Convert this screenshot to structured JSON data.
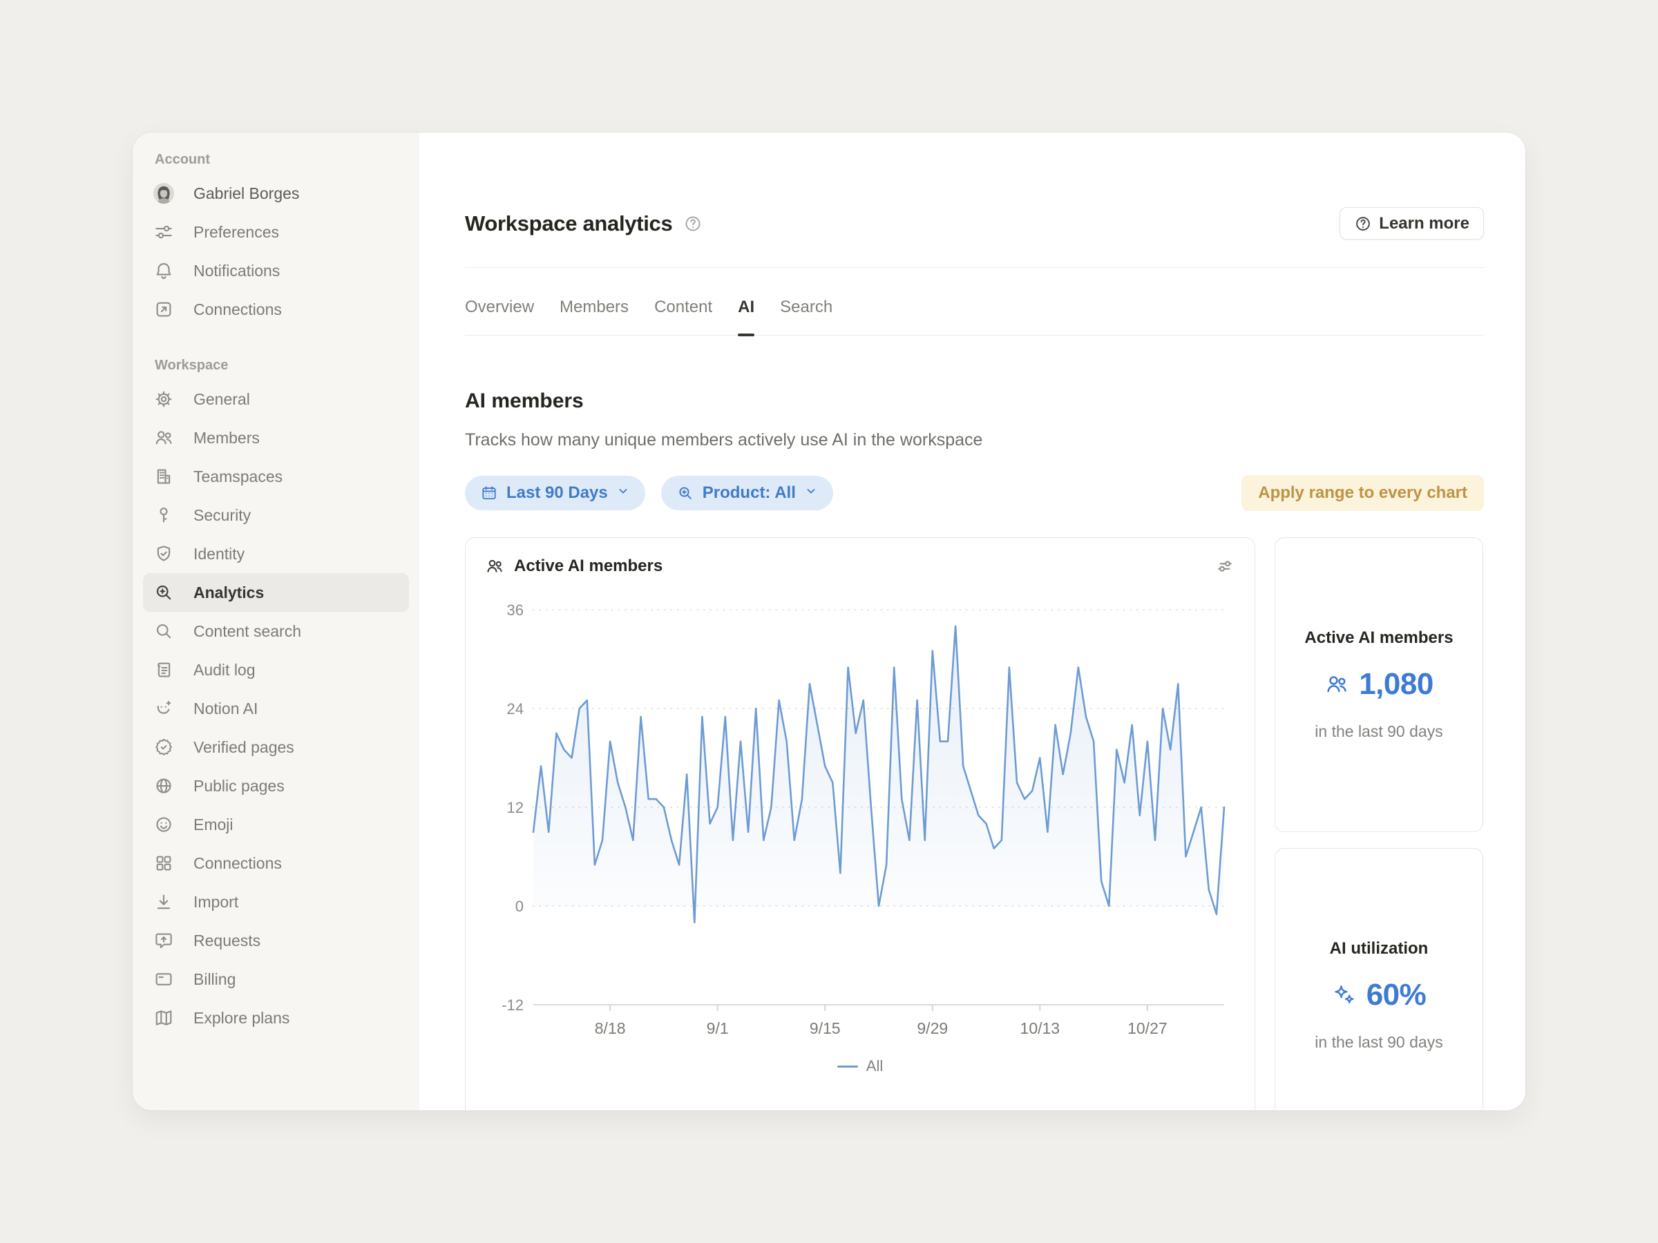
{
  "colors": {
    "accent_blue": "#3C7BD4",
    "chart_line": "#6D9BD3",
    "pill_bg": "#DFEAF8",
    "pill_text": "#3F7CC8",
    "apply_chip_bg": "#FBF3DB",
    "apply_chip_text": "#BE9345",
    "sidebar_bg": "#F7F6F3",
    "selected_item_bg": "#ECEAE7",
    "page_bg": "#F1EFEB"
  },
  "sidebar": {
    "account": {
      "label": "Account",
      "user": {
        "label": "Gabriel Borges",
        "icon": "avatar"
      },
      "items": [
        {
          "label": "Preferences",
          "icon": "sliders-icon"
        },
        {
          "label": "Notifications",
          "icon": "bell-icon"
        },
        {
          "label": "Connections",
          "icon": "arrow-up-right-square-icon"
        }
      ]
    },
    "workspace": {
      "label": "Workspace",
      "items": [
        {
          "label": "General",
          "icon": "gear-icon"
        },
        {
          "label": "Members",
          "icon": "people-icon"
        },
        {
          "label": "Teamspaces",
          "icon": "building-icon"
        },
        {
          "label": "Security",
          "icon": "key-icon"
        },
        {
          "label": "Identity",
          "icon": "shield-check-icon"
        },
        {
          "label": "Analytics",
          "icon": "magnifier-sparkle-icon",
          "selected": true
        },
        {
          "label": "Content search",
          "icon": "magnifier-icon"
        },
        {
          "label": "Audit log",
          "icon": "document-lines-icon"
        },
        {
          "label": "Notion AI",
          "icon": "ai-face-icon"
        },
        {
          "label": "Verified pages",
          "icon": "badge-check-icon"
        },
        {
          "label": "Public pages",
          "icon": "globe-icon"
        },
        {
          "label": "Emoji",
          "icon": "smiley-icon"
        },
        {
          "label": "Connections",
          "icon": "grid-icon"
        },
        {
          "label": "Import",
          "icon": "download-icon"
        },
        {
          "label": "Requests",
          "icon": "message-up-icon"
        },
        {
          "label": "Billing",
          "icon": "credit-card-icon"
        },
        {
          "label": "Explore plans",
          "icon": "map-icon"
        }
      ]
    }
  },
  "header": {
    "title": "Workspace analytics",
    "help_icon": "help-circle-icon",
    "learn_more_label": "Learn more"
  },
  "tabs": [
    {
      "label": "Overview",
      "active": false
    },
    {
      "label": "Members",
      "active": false
    },
    {
      "label": "Content",
      "active": false
    },
    {
      "label": "AI",
      "active": true
    },
    {
      "label": "Search",
      "active": false
    }
  ],
  "section": {
    "title": "AI members",
    "description": "Tracks how many unique members actively use AI in the workspace"
  },
  "filters": {
    "date_range": {
      "label": "Last 90 Days",
      "icon": "calendar-icon"
    },
    "product": {
      "label": "Product: All",
      "icon": "magnifier-plus-icon"
    },
    "apply_label": "Apply range to every chart"
  },
  "chart_card": {
    "title": "Active AI members",
    "title_icon": "people-icon",
    "options_icon": "sliders-icon"
  },
  "chart_data": {
    "type": "line",
    "title": "Active AI members",
    "xlabel": "",
    "ylabel": "",
    "ylim": [
      -12,
      36
    ],
    "yticks": [
      36,
      24,
      12,
      0,
      -12
    ],
    "grid": "dotted-horizontal",
    "legend_position": "bottom",
    "x_tick_labels": [
      "8/18",
      "9/1",
      "9/15",
      "9/29",
      "10/13",
      "10/27"
    ],
    "x_tick_indices": [
      10,
      24,
      38,
      52,
      66,
      80
    ],
    "series": [
      {
        "name": "All",
        "color": "#6D9BD3",
        "values": [
          9,
          17,
          9,
          21,
          19,
          18,
          24,
          25,
          5,
          8,
          20,
          15,
          12,
          8,
          23,
          13,
          13,
          12,
          8,
          5,
          16,
          -2,
          23,
          10,
          12,
          23,
          8,
          20,
          9,
          24,
          8,
          12,
          25,
          20,
          8,
          13,
          27,
          22,
          17,
          15,
          4,
          29,
          21,
          25,
          12,
          0,
          5,
          29,
          13,
          8,
          25,
          8,
          31,
          20,
          20,
          34,
          17,
          14,
          11,
          10,
          7,
          8,
          29,
          15,
          13,
          14,
          18,
          9,
          22,
          16,
          21,
          29,
          23,
          20,
          3,
          0,
          19,
          15,
          22,
          11,
          20,
          8,
          24,
          19,
          27,
          6,
          9,
          12,
          2,
          -1,
          12
        ]
      }
    ]
  },
  "stats": [
    {
      "title": "Active AI members",
      "icon": "people-icon",
      "value": "1,080",
      "caption": "in the last 90 days"
    },
    {
      "title": "AI utilization",
      "icon": "sparkles-icon",
      "value": "60%",
      "caption": "in the last 90 days"
    }
  ]
}
